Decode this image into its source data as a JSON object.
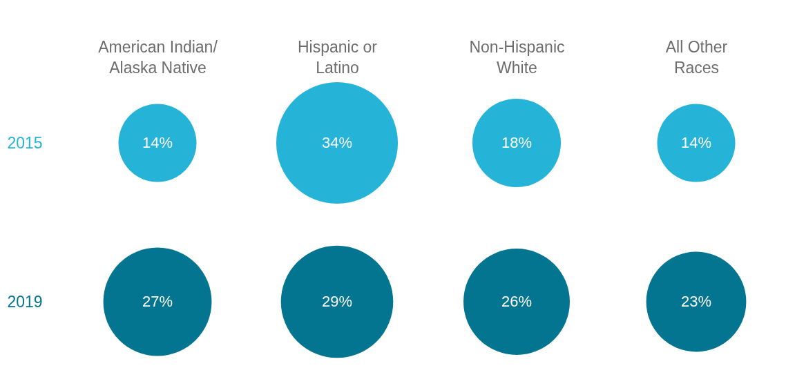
{
  "chart_data": {
    "type": "other",
    "categories": [
      "American Indian/\nAlaska Native",
      "Hispanic or\nLatino",
      "Non-Hispanic\nWhite",
      "All Other\nRaces"
    ],
    "series": [
      {
        "name": "2015",
        "color": "#25b4d8",
        "values": [
          14,
          34,
          18,
          14
        ],
        "value_labels": [
          "14%",
          "34%",
          "18%",
          "14%"
        ]
      },
      {
        "name": "2019",
        "color": "#037591",
        "values": [
          27,
          29,
          26,
          23
        ],
        "value_labels": [
          "27%",
          "29%",
          "26%",
          "23%"
        ]
      }
    ]
  }
}
